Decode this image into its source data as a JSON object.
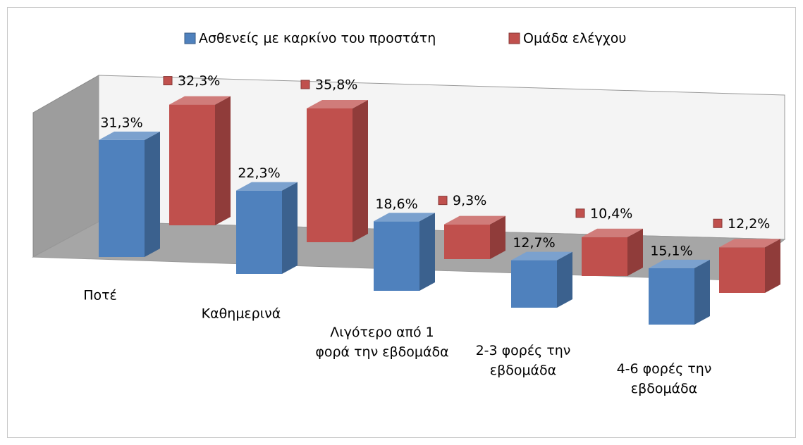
{
  "chart_data": {
    "type": "bar3d",
    "categories": [
      "Ποτέ",
      "Καθημερινά",
      "Λιγότερο από 1 φορά την εβδομάδα",
      "2-3 φορές την εβδομάδα",
      "4-6 φορές την εβδομάδα"
    ],
    "series": [
      {
        "name": "Ασθενείς με καρκίνο του προστάτη",
        "color": "#4f81bd",
        "values": [
          31.3,
          22.3,
          18.6,
          12.7,
          15.1
        ],
        "value_labels": [
          "31,3%",
          "22,3%",
          "18,6%",
          "12,7%",
          "15,1%"
        ]
      },
      {
        "name": "Ομάδα ελέγχου",
        "color": "#c0504d",
        "values": [
          32.3,
          35.8,
          9.3,
          10.4,
          12.2
        ],
        "value_labels": [
          "32,3%",
          "35,8%",
          "9,3%",
          "10,4%",
          "12,2%"
        ]
      }
    ],
    "legend": "top"
  }
}
